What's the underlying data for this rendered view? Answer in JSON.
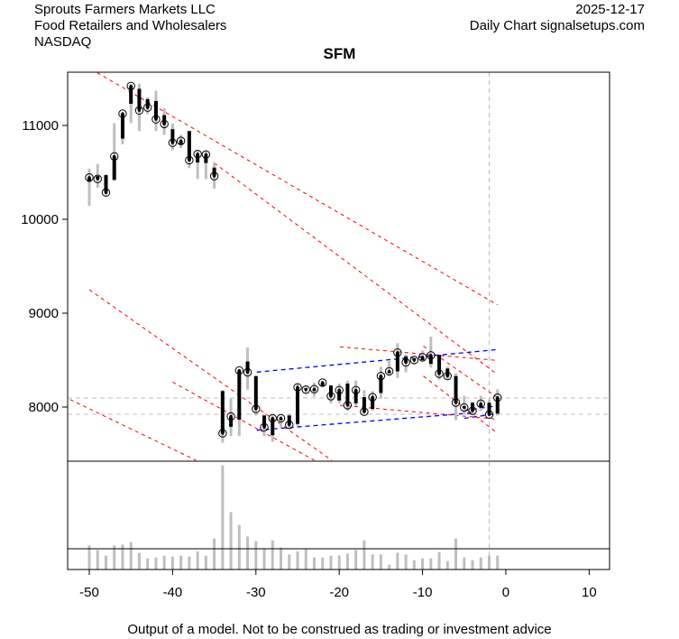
{
  "header": {
    "company": "Sprouts Farmers Markets LLC",
    "industry": "Food Retailers and Wholesalers",
    "exchange": "NASDAQ",
    "date": "2025-12-17",
    "source": "Daily Chart signalsetups.com"
  },
  "footer": "Output of a model. Not to be construed as trading or investment advice",
  "colors": {
    "trend_red": "#ff0000",
    "channel_blue": "#0000ff",
    "wick_grey": "#bebebe",
    "body_black": "#000000",
    "ref_grey": "#bebebe"
  },
  "chart_data": {
    "type": "candlestick",
    "title": "SFM",
    "xlabel": "",
    "ylabel": "",
    "xlim": [
      -52.6,
      12.45
    ],
    "ylim": [
      7423,
      11567
    ],
    "x_ticks": [
      -50,
      -40,
      -30,
      -20,
      -10,
      0,
      10
    ],
    "y_ticks": [
      8000,
      9000,
      10000,
      11000
    ],
    "grid": false,
    "ohlc_columns": [
      "x",
      "open",
      "high",
      "low",
      "close"
    ],
    "ohlc": [
      [
        -50,
        10400,
        10540,
        10145,
        10445
      ],
      [
        -49,
        10460,
        10590,
        10335,
        10430
      ],
      [
        -48,
        10470,
        10480,
        10250,
        10285
      ],
      [
        -47,
        10420,
        11025,
        10410,
        10670
      ],
      [
        -46,
        10860,
        11140,
        10800,
        11125
      ],
      [
        -45,
        11230,
        11440,
        11025,
        11420
      ],
      [
        -44,
        11390,
        11445,
        10940,
        11160
      ],
      [
        -43,
        11280,
        11300,
        11120,
        11190
      ],
      [
        -42,
        11260,
        11370,
        10940,
        11065
      ],
      [
        -41,
        11110,
        11185,
        10900,
        11015
      ],
      [
        -40,
        10960,
        11020,
        10735,
        10815
      ],
      [
        -39,
        10800,
        10900,
        10760,
        10835
      ],
      [
        -38,
        10940,
        10940,
        10545,
        10630
      ],
      [
        -37,
        10605,
        10740,
        10430,
        10695
      ],
      [
        -36,
        10600,
        10730,
        10430,
        10690
      ],
      [
        -35,
        10550,
        10610,
        10325,
        10460
      ],
      [
        -34,
        8170,
        8180,
        7620,
        7720
      ],
      [
        -33,
        7790,
        8090,
        7690,
        7900
      ],
      [
        -32,
        7865,
        8395,
        7690,
        8390
      ],
      [
        -31,
        8485,
        8635,
        8186,
        8370
      ],
      [
        -30,
        8330,
        8330,
        7910,
        7980
      ],
      [
        -29,
        7910,
        7915,
        7690,
        7785
      ],
      [
        -28,
        7700,
        7910,
        7630,
        7880
      ],
      [
        -27,
        7860,
        7905,
        7780,
        7880
      ],
      [
        -26,
        7910,
        7920,
        7780,
        7810
      ],
      [
        -25,
        7820,
        8250,
        7800,
        8210
      ],
      [
        -24,
        8200,
        8230,
        8150,
        8185
      ],
      [
        -23,
        8170,
        8260,
        8110,
        8190
      ],
      [
        -22,
        8225,
        8280,
        8220,
        8260
      ],
      [
        -21,
        8230,
        8230,
        8040,
        8115
      ],
      [
        -20,
        8070,
        8250,
        8040,
        8180
      ],
      [
        -19,
        8250,
        8280,
        7960,
        8020
      ],
      [
        -18,
        8040,
        8280,
        8010,
        8180
      ],
      [
        -17,
        8105,
        8180,
        7930,
        7950
      ],
      [
        -16,
        7980,
        8170,
        7960,
        8105
      ],
      [
        -15,
        8150,
        8430,
        8090,
        8330
      ],
      [
        -14,
        8360,
        8490,
        8340,
        8380
      ],
      [
        -13,
        8380,
        8680,
        8310,
        8580
      ],
      [
        -12,
        8540,
        8560,
        8370,
        8475
      ],
      [
        -11,
        8520,
        8540,
        8460,
        8500
      ],
      [
        -10,
        8500,
        8600,
        8490,
        8530
      ],
      [
        -9,
        8460,
        8750,
        8420,
        8550
      ],
      [
        -8,
        8555,
        8555,
        8290,
        8355
      ],
      [
        -7,
        8410,
        8430,
        8295,
        8330
      ],
      [
        -6,
        8330,
        8360,
        7860,
        8048
      ],
      [
        -5,
        8010,
        8120,
        7920,
        7995
      ],
      [
        -4,
        8045,
        8060,
        7915,
        7960
      ],
      [
        -3,
        7995,
        8120,
        7960,
        8035
      ],
      [
        -2,
        8045,
        8080,
        7905,
        7920
      ],
      [
        -1,
        7930,
        8190,
        7910,
        8100
      ]
    ],
    "volume": {
      "x_start": -50,
      "ylim": [
        0,
        360
      ],
      "reference_level": 69,
      "values": [
        80,
        65,
        46,
        80,
        83,
        91,
        55,
        37,
        40,
        46,
        43,
        46,
        43,
        60,
        46,
        103,
        346,
        191,
        148,
        110,
        94,
        70,
        97,
        73,
        50,
        60,
        70,
        40,
        40,
        46,
        47,
        53,
        65,
        97,
        50,
        50,
        16,
        56,
        50,
        31,
        37,
        37,
        58,
        28,
        103,
        40,
        31,
        40,
        46,
        46
      ]
    },
    "trend_lines_red": [
      [
        [
          -49.8,
          11600
        ],
        [
          -1,
          9089
        ]
      ],
      [
        [
          -35,
          10600
        ],
        [
          -1,
          8346
        ]
      ],
      [
        [
          -50,
          9250
        ],
        [
          -20.9,
          7433
        ]
      ],
      [
        [
          -52.3,
          8080
        ],
        [
          -37.2,
          7433
        ]
      ],
      [
        [
          -40,
          8266
        ],
        [
          -23,
          7433
        ]
      ],
      [
        [
          -19.9,
          8641
        ],
        [
          -1.1,
          8497
        ]
      ],
      [
        [
          -19.9,
          8019
        ],
        [
          -1.1,
          7872
        ]
      ],
      [
        [
          -9.9,
          8650
        ],
        [
          -1,
          8100
        ]
      ],
      [
        [
          -9.9,
          8330
        ],
        [
          -1,
          7721
        ]
      ]
    ],
    "channel_lines_blue": [
      [
        [
          -29.9,
          8372
        ],
        [
          -1,
          8612
        ]
      ],
      [
        [
          -29.9,
          7753
        ],
        [
          -3.7,
          7940
        ]
      ],
      [
        [
          -5,
          7960
        ],
        [
          -1,
          8015
        ]
      ],
      [
        [
          -5,
          7880
        ],
        [
          -1,
          7930
        ]
      ]
    ],
    "reference_levels": [
      8096,
      7923
    ],
    "reference_x": -2
  }
}
